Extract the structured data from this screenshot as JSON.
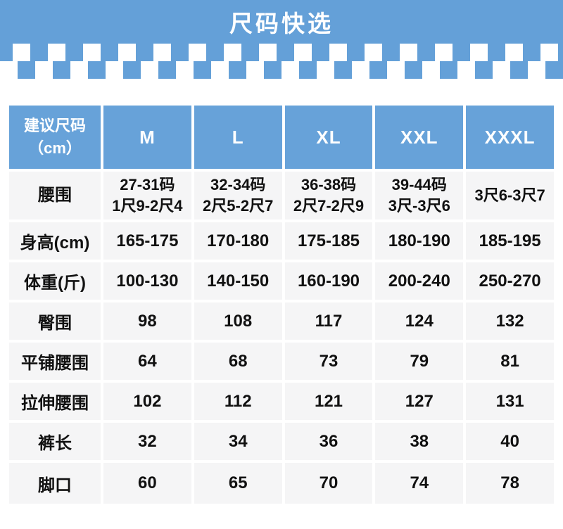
{
  "banner": {
    "title": "尺码快选"
  },
  "colors": {
    "banner_blue": "#64a0d8",
    "header_blue": "#67a2d9",
    "cell_bg": "#f5f5f6",
    "text": "#111111"
  },
  "table": {
    "corner_label": "建议尺码\n（cm）",
    "columns": [
      "M",
      "L",
      "XL",
      "XXL",
      "XXXL"
    ],
    "rows": [
      {
        "label": "腰围",
        "values": [
          "27-31码\n1尺9-2尺4",
          "32-34码\n2尺5-2尺7",
          "36-38码\n2尺7-2尺9",
          "39-44码\n3尺-3尺6",
          "3尺6-3尺7"
        ]
      },
      {
        "label": "身高(cm)",
        "values": [
          "165-175",
          "170-180",
          "175-185",
          "180-190",
          "185-195"
        ]
      },
      {
        "label": "体重(斤)",
        "values": [
          "100-130",
          "140-150",
          "160-190",
          "200-240",
          "250-270"
        ]
      },
      {
        "label": "臀围",
        "values": [
          "98",
          "108",
          "117",
          "124",
          "132"
        ]
      },
      {
        "label": "平铺腰围",
        "values": [
          "64",
          "68",
          "73",
          "79",
          "81"
        ]
      },
      {
        "label": "拉伸腰围",
        "values": [
          "102",
          "112",
          "121",
          "127",
          "131"
        ]
      },
      {
        "label": "裤长",
        "values": [
          "32",
          "34",
          "36",
          "38",
          "40"
        ]
      },
      {
        "label": "脚口",
        "values": [
          "60",
          "65",
          "70",
          "74",
          "78"
        ]
      }
    ]
  }
}
